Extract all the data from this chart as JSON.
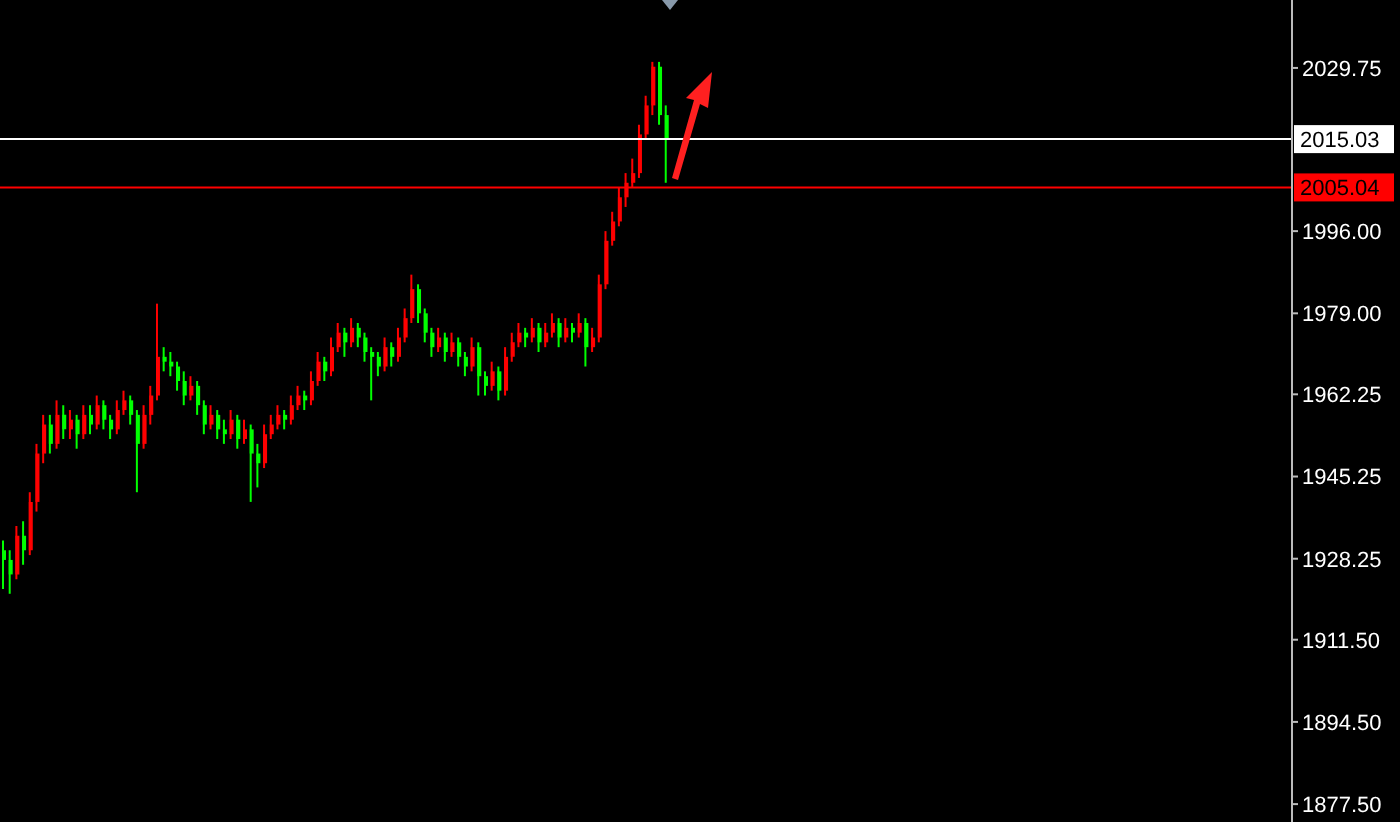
{
  "chart_data": {
    "type": "candlestick",
    "categories": [
      null,
      null,
      null,
      null,
      null,
      null,
      null,
      null,
      null,
      null,
      null,
      null,
      null,
      null,
      null,
      null,
      null,
      null,
      null,
      null,
      null,
      null,
      null,
      null,
      null,
      null,
      null,
      null,
      null,
      null,
      null,
      null,
      null,
      null,
      null,
      null,
      null,
      null,
      null,
      null,
      null,
      null,
      null,
      null,
      null,
      null,
      null,
      null,
      null,
      null,
      null,
      null,
      null,
      null,
      null,
      null,
      null,
      null,
      null,
      null,
      null,
      null,
      null,
      null,
      null,
      null,
      null,
      null,
      null,
      null,
      null,
      null,
      null,
      null,
      null,
      null,
      null,
      null,
      null,
      null,
      null,
      null,
      null,
      null,
      null,
      null,
      null,
      null,
      null,
      null,
      null,
      null,
      null,
      null,
      null,
      null,
      null,
      null,
      null,
      null,
      null,
      null,
      null,
      null,
      null,
      null,
      null,
      null,
      null,
      null,
      null,
      null,
      null,
      null,
      null,
      null,
      null,
      null,
      null,
      null,
      null,
      null,
      null,
      null,
      null,
      null,
      null,
      null,
      null,
      null,
      null,
      null,
      null,
      null,
      null,
      null,
      null,
      null,
      null,
      null,
      null,
      null,
      null,
      null,
      null,
      null,
      null,
      null,
      null,
      null,
      null,
      null,
      null,
      null,
      null,
      null,
      null,
      null,
      null,
      null,
      null,
      null,
      null,
      null,
      null,
      null,
      null,
      null,
      null,
      null,
      null,
      null,
      null,
      null,
      null,
      null,
      null,
      null,
      null,
      null,
      null,
      null,
      null,
      null,
      null,
      null,
      null,
      null,
      null,
      null,
      null,
      null,
      null
    ],
    "ohlc": [
      [
        1930,
        1932,
        1922,
        1928
      ],
      [
        1928,
        1930,
        1921,
        1925
      ],
      [
        1925,
        1935,
        1924,
        1933
      ],
      [
        1933,
        1936,
        1927,
        1930
      ],
      [
        1930,
        1942,
        1929,
        1940
      ],
      [
        1940,
        1952,
        1938,
        1950
      ],
      [
        1950,
        1958,
        1948,
        1956
      ],
      [
        1956,
        1958,
        1950,
        1952
      ],
      [
        1952,
        1961,
        1951,
        1958
      ],
      [
        1958,
        1960,
        1953,
        1955
      ],
      [
        1955,
        1959,
        1953,
        1957
      ],
      [
        1957,
        1958,
        1951,
        1954
      ],
      [
        1954,
        1960,
        1953,
        1958
      ],
      [
        1958,
        1960,
        1954,
        1956
      ],
      [
        1956,
        1962,
        1955,
        1960
      ],
      [
        1960,
        1961,
        1955,
        1957
      ],
      [
        1957,
        1958,
        1953,
        1955
      ],
      [
        1955,
        1961,
        1954,
        1959
      ],
      [
        1959,
        1963,
        1958,
        1961
      ],
      [
        1961,
        1962,
        1956,
        1958
      ],
      [
        1958,
        1959,
        1942,
        1952
      ],
      [
        1952,
        1960,
        1951,
        1958
      ],
      [
        1958,
        1964,
        1956,
        1962
      ],
      [
        1962,
        1981,
        1961,
        1970
      ],
      [
        1970,
        1972,
        1967,
        1969
      ],
      [
        1969,
        1971,
        1966,
        1968
      ],
      [
        1968,
        1969,
        1963,
        1965
      ],
      [
        1965,
        1967,
        1960,
        1962
      ],
      [
        1962,
        1966,
        1961,
        1964
      ],
      [
        1964,
        1965,
        1958,
        1960
      ],
      [
        1960,
        1961,
        1954,
        1956
      ],
      [
        1956,
        1960,
        1955,
        1958
      ],
      [
        1958,
        1959,
        1953,
        1955
      ],
      [
        1955,
        1957,
        1952,
        1954
      ],
      [
        1954,
        1959,
        1953,
        1957
      ],
      [
        1957,
        1958,
        1951,
        1953
      ],
      [
        1953,
        1957,
        1952,
        1955
      ],
      [
        1955,
        1956,
        1940,
        1950
      ],
      [
        1950,
        1952,
        1943,
        1948
      ],
      [
        1948,
        1956,
        1947,
        1954
      ],
      [
        1954,
        1958,
        1953,
        1956
      ],
      [
        1956,
        1960,
        1955,
        1958
      ],
      [
        1958,
        1959,
        1955,
        1957
      ],
      [
        1957,
        1962,
        1956,
        1960
      ],
      [
        1960,
        1964,
        1959,
        1962
      ],
      [
        1962,
        1963,
        1959,
        1961
      ],
      [
        1961,
        1967,
        1960,
        1965
      ],
      [
        1965,
        1971,
        1964,
        1969
      ],
      [
        1969,
        1970,
        1965,
        1967
      ],
      [
        1967,
        1974,
        1966,
        1972
      ],
      [
        1972,
        1977,
        1971,
        1975
      ],
      [
        1975,
        1976,
        1970,
        1973
      ],
      [
        1973,
        1978,
        1972,
        1976
      ],
      [
        1976,
        1977,
        1972,
        1974
      ],
      [
        1974,
        1975,
        1969,
        1971
      ],
      [
        1971,
        1972,
        1961,
        1970
      ],
      [
        1970,
        1971,
        1966,
        1968
      ],
      [
        1968,
        1974,
        1967,
        1972
      ],
      [
        1972,
        1973,
        1968,
        1970
      ],
      [
        1970,
        1976,
        1969,
        1974
      ],
      [
        1974,
        1980,
        1973,
        1978
      ],
      [
        1978,
        1987,
        1977,
        1984
      ],
      [
        1984,
        1985,
        1977,
        1979
      ],
      [
        1979,
        1980,
        1973,
        1975
      ],
      [
        1975,
        1976,
        1970,
        1972
      ],
      [
        1972,
        1976,
        1971,
        1974
      ],
      [
        1974,
        1975,
        1969,
        1971
      ],
      [
        1971,
        1975,
        1970,
        1973
      ],
      [
        1973,
        1974,
        1968,
        1970
      ],
      [
        1970,
        1971,
        1966,
        1968
      ],
      [
        1968,
        1974,
        1967,
        1972
      ],
      [
        1972,
        1973,
        1962,
        1966
      ],
      [
        1966,
        1967,
        1962,
        1964
      ],
      [
        1964,
        1969,
        1963,
        1967
      ],
      [
        1967,
        1968,
        1961,
        1963
      ],
      [
        1963,
        1972,
        1962,
        1970
      ],
      [
        1970,
        1975,
        1969,
        1973
      ],
      [
        1973,
        1977,
        1972,
        1975
      ],
      [
        1975,
        1976,
        1972,
        1974
      ],
      [
        1974,
        1978,
        1973,
        1976
      ],
      [
        1976,
        1977,
        1971,
        1973
      ],
      [
        1973,
        1977,
        1972,
        1975
      ],
      [
        1975,
        1979,
        1974,
        1977
      ],
      [
        1977,
        1978,
        1972,
        1974
      ],
      [
        1974,
        1978,
        1973,
        1976
      ],
      [
        1976,
        1977,
        1973,
        1975
      ],
      [
        1975,
        1979,
        1974,
        1977
      ],
      [
        1977,
        1978,
        1968,
        1972
      ],
      [
        1972,
        1976,
        1971,
        1974
      ],
      [
        1974,
        1987,
        1973,
        1985
      ],
      [
        1985,
        1996,
        1984,
        1994
      ],
      [
        1994,
        2000,
        1993,
        1998
      ],
      [
        1998,
        2005,
        1997,
        2003
      ],
      [
        2003,
        2008,
        2001,
        2006
      ],
      [
        2006,
        2011,
        2005,
        2008
      ],
      [
        2008,
        2018,
        2007,
        2016
      ],
      [
        2016,
        2024,
        2015,
        2022
      ],
      [
        2022,
        2031,
        2020,
        2030
      ],
      [
        2030,
        2031,
        2018,
        2020
      ],
      [
        2020,
        2022,
        2006,
        2015
      ],
      null,
      null,
      null,
      null,
      null,
      null,
      null,
      null,
      null,
      null,
      null,
      null,
      null,
      null,
      null,
      null,
      null,
      null,
      null,
      null,
      null,
      null,
      null,
      null,
      null,
      null,
      null,
      null,
      null,
      null,
      null,
      null,
      null,
      null,
      null,
      null,
      null,
      null,
      null,
      null,
      null,
      null,
      null,
      null,
      null,
      null,
      null,
      null,
      null,
      null,
      null,
      null,
      null,
      null,
      null,
      null,
      null,
      null,
      null,
      null,
      null,
      null,
      null,
      null,
      null,
      null,
      null,
      null,
      null,
      null,
      null,
      null,
      null,
      null,
      null,
      null,
      null,
      null,
      null,
      null,
      null,
      null,
      null,
      null,
      null,
      null,
      null,
      null,
      null,
      null,
      null,
      null,
      null
    ],
    "colors": [
      "#00ff00",
      "#00ff00",
      "#ff0000",
      "#00ff00",
      "#ff0000",
      "#ff0000",
      "#ff0000",
      "#00ff00",
      "#ff0000",
      "#00ff00",
      "#ff0000",
      "#00ff00",
      "#ff0000",
      "#00ff00",
      "#ff0000",
      "#00ff00",
      "#00ff00",
      "#ff0000",
      "#ff0000",
      "#00ff00",
      "#00ff00",
      "#ff0000",
      "#ff0000",
      "#ff0000",
      "#00ff00",
      "#00ff00",
      "#00ff00",
      "#00ff00",
      "#ff0000",
      "#00ff00",
      "#00ff00",
      "#ff0000",
      "#00ff00",
      "#00ff00",
      "#ff0000",
      "#00ff00",
      "#ff0000",
      "#00ff00",
      "#00ff00",
      "#ff0000",
      "#ff0000",
      "#ff0000",
      "#00ff00",
      "#ff0000",
      "#ff0000",
      "#00ff00",
      "#ff0000",
      "#ff0000",
      "#00ff00",
      "#ff0000",
      "#ff0000",
      "#00ff00",
      "#ff0000",
      "#00ff00",
      "#00ff00",
      "#00ff00",
      "#00ff00",
      "#ff0000",
      "#00ff00",
      "#ff0000",
      "#ff0000",
      "#ff0000",
      "#00ff00",
      "#00ff00",
      "#00ff00",
      "#ff0000",
      "#00ff00",
      "#ff0000",
      "#00ff00",
      "#00ff00",
      "#ff0000",
      "#00ff00",
      "#00ff00",
      "#ff0000",
      "#00ff00",
      "#ff0000",
      "#ff0000",
      "#ff0000",
      "#00ff00",
      "#ff0000",
      "#00ff00",
      "#ff0000",
      "#ff0000",
      "#00ff00",
      "#ff0000",
      "#00ff00",
      "#ff0000",
      "#00ff00",
      "#ff0000",
      "#ff0000",
      "#ff0000",
      "#ff0000",
      "#ff0000",
      "#ff0000",
      "#ff0000",
      "#ff0000",
      "#ff0000",
      "#ff0000",
      "#00ff00",
      "#00ff00",
      null,
      null,
      null,
      null,
      null,
      null,
      null,
      null,
      null,
      null,
      null,
      null,
      null,
      null,
      null,
      null,
      null,
      null,
      null,
      null,
      null,
      null,
      null,
      null,
      null,
      null,
      null,
      null,
      null,
      null,
      null,
      null,
      null,
      null,
      null,
      null,
      null,
      null,
      null,
      null,
      null,
      null,
      null,
      null,
      null,
      null,
      null,
      null,
      null,
      null,
      null,
      null,
      null,
      null,
      null,
      null,
      null,
      null,
      null,
      null,
      null,
      null,
      null,
      null,
      null,
      null,
      null,
      null,
      null,
      null,
      null,
      null,
      null,
      null,
      null,
      null,
      null,
      null,
      null,
      null,
      null,
      null,
      null,
      null,
      null,
      null,
      null,
      null,
      null,
      null,
      null,
      null,
      null
    ],
    "ylim": [
      1873.8,
      2043.8
    ],
    "yticks": [
      {
        "value": 1877.5,
        "label": "1877.50"
      },
      {
        "value": 1894.5,
        "label": "1894.50"
      },
      {
        "value": 1911.5,
        "label": "1911.50"
      },
      {
        "value": 1928.25,
        "label": "1928.25"
      },
      {
        "value": 1945.25,
        "label": "1945.25"
      },
      {
        "value": 1962.25,
        "label": "1962.25"
      },
      {
        "value": 1979,
        "label": "1979.00"
      },
      {
        "value": 1996,
        "label": "1996.00"
      },
      {
        "value": 2029.75,
        "label": "2029.75"
      }
    ],
    "ref_lines": [
      {
        "axis": "y",
        "value": 2015.03,
        "label": "2015.03",
        "color": "#ffffff"
      },
      {
        "axis": "y",
        "value": 2005.04,
        "label": "2005.04",
        "color": "#ff0000"
      }
    ],
    "grid": false
  }
}
